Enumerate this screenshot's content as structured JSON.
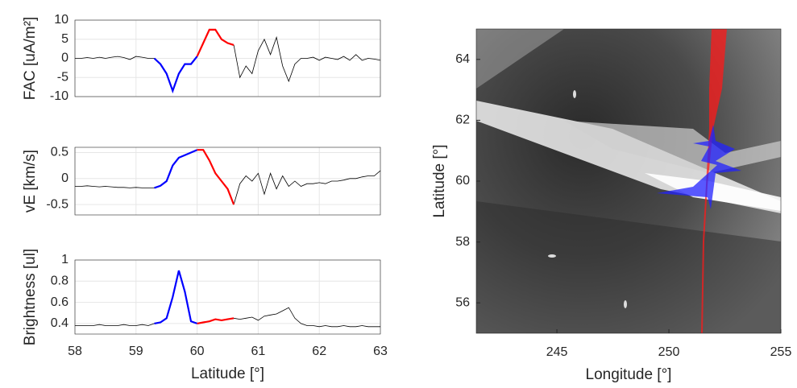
{
  "chart_data": [
    {
      "type": "line",
      "ylabel": "FAC [uA/m²]",
      "x": [
        58.0,
        58.1,
        58.2,
        58.3,
        58.4,
        58.5,
        58.6,
        58.7,
        58.8,
        58.9,
        59.0,
        59.1,
        59.2,
        59.3,
        59.4,
        59.5,
        59.6,
        59.7,
        59.8,
        59.9,
        60.0,
        60.1,
        60.2,
        60.3,
        60.4,
        60.5,
        60.6,
        60.7,
        60.8,
        60.9,
        61.0,
        61.1,
        61.2,
        61.3,
        61.4,
        61.5,
        61.6,
        61.7,
        61.8,
        61.9,
        62.0,
        62.1,
        62.2,
        62.3,
        62.4,
        62.5,
        62.6,
        62.7,
        62.8,
        62.9,
        63.0
      ],
      "series": [
        {
          "color": "#000000",
          "values": [
            0,
            0,
            0.2,
            0,
            0.3,
            0,
            0.3,
            0.5,
            0.2,
            -0.3,
            0.5,
            0.3,
            0,
            0,
            null,
            null,
            null,
            null,
            null,
            null,
            null,
            null,
            null,
            null,
            null,
            null,
            3.5,
            -5,
            -2,
            -4,
            2,
            5,
            1,
            5.5,
            -2,
            -6,
            -1.5,
            0,
            0,
            0.3,
            -0.5,
            0.3,
            0,
            -0.3,
            0.5,
            -0.5,
            1,
            -0.5,
            0,
            -0.2,
            -0.5
          ]
        },
        {
          "color": "#0000ff",
          "values": [
            null,
            null,
            null,
            null,
            null,
            null,
            null,
            null,
            null,
            null,
            null,
            null,
            null,
            0,
            -1.5,
            -4,
            -8.5,
            -4,
            -1.5,
            -1.5,
            0.5,
            null,
            null,
            null,
            null,
            null,
            null,
            null,
            null,
            null,
            null,
            null,
            null,
            null,
            null,
            null,
            null,
            null,
            null,
            null,
            null,
            null,
            null,
            null,
            null,
            null,
            null,
            null,
            null,
            null,
            null
          ]
        },
        {
          "color": "#ff0000",
          "values": [
            null,
            null,
            null,
            null,
            null,
            null,
            null,
            null,
            null,
            null,
            null,
            null,
            null,
            null,
            null,
            null,
            null,
            null,
            null,
            null,
            0.5,
            4,
            7.5,
            7.5,
            5,
            4,
            3.5,
            null,
            null,
            null,
            null,
            null,
            null,
            null,
            null,
            null,
            null,
            null,
            null,
            null,
            null,
            null,
            null,
            null,
            null,
            null,
            null,
            null,
            null,
            null,
            null
          ]
        }
      ],
      "xlim": [
        58,
        63
      ],
      "xticks": [
        58,
        59,
        60,
        61,
        62,
        63
      ],
      "ylim": [
        -10,
        10
      ],
      "yticks": [
        -10,
        -5,
        0,
        5,
        10
      ],
      "grid": true
    },
    {
      "type": "line",
      "ylabel": "vE [km/s]",
      "x": [
        58.0,
        58.1,
        58.2,
        58.3,
        58.4,
        58.5,
        58.6,
        58.7,
        58.8,
        58.9,
        59.0,
        59.1,
        59.2,
        59.3,
        59.4,
        59.5,
        59.6,
        59.7,
        59.8,
        59.9,
        60.0,
        60.1,
        60.2,
        60.3,
        60.4,
        60.5,
        60.6,
        60.7,
        60.8,
        60.9,
        61.0,
        61.1,
        61.2,
        61.3,
        61.4,
        61.5,
        61.6,
        61.7,
        61.8,
        61.9,
        62.0,
        62.1,
        62.2,
        62.3,
        62.4,
        62.5,
        62.6,
        62.7,
        62.8,
        62.9,
        63.0
      ],
      "series": [
        {
          "color": "#000000",
          "values": [
            -0.15,
            -0.15,
            -0.14,
            -0.15,
            -0.16,
            -0.15,
            -0.16,
            -0.17,
            -0.17,
            -0.18,
            -0.17,
            -0.18,
            -0.18,
            -0.18,
            null,
            null,
            null,
            null,
            null,
            null,
            null,
            null,
            null,
            null,
            null,
            null,
            -0.5,
            -0.1,
            0.05,
            -0.05,
            0.1,
            -0.3,
            0.1,
            -0.2,
            0.05,
            -0.15,
            -0.05,
            -0.15,
            -0.1,
            -0.1,
            -0.08,
            -0.1,
            -0.05,
            -0.05,
            -0.03,
            0,
            0,
            0.03,
            0.05,
            0.05,
            0.15
          ]
        },
        {
          "color": "#0000ff",
          "values": [
            null,
            null,
            null,
            null,
            null,
            null,
            null,
            null,
            null,
            null,
            null,
            null,
            null,
            -0.18,
            -0.14,
            -0.05,
            0.25,
            0.4,
            0.45,
            0.5,
            0.55,
            null,
            null,
            null,
            null,
            null,
            null,
            null,
            null,
            null,
            null,
            null,
            null,
            null,
            null,
            null,
            null,
            null,
            null,
            null,
            null,
            null,
            null,
            null,
            null,
            null,
            null,
            null,
            null,
            null,
            null
          ]
        },
        {
          "color": "#ff0000",
          "values": [
            null,
            null,
            null,
            null,
            null,
            null,
            null,
            null,
            null,
            null,
            null,
            null,
            null,
            null,
            null,
            null,
            null,
            null,
            null,
            null,
            0.55,
            0.55,
            0.35,
            0.1,
            -0.05,
            -0.2,
            -0.5,
            null,
            null,
            null,
            null,
            null,
            null,
            null,
            null,
            null,
            null,
            null,
            null,
            null,
            null,
            null,
            null,
            null,
            null,
            null,
            null,
            null,
            null,
            null,
            null
          ]
        }
      ],
      "xlim": [
        58,
        63
      ],
      "xticks": [
        58,
        59,
        60,
        61,
        62,
        63
      ],
      "ylim": [
        -0.7,
        0.6
      ],
      "yticks": [
        -0.5,
        0,
        0.5
      ],
      "grid": true
    },
    {
      "type": "line",
      "ylabel": "Brightness [ul]",
      "xlabel": "Latitude [°]",
      "x": [
        58.0,
        58.1,
        58.2,
        58.3,
        58.4,
        58.5,
        58.6,
        58.7,
        58.8,
        58.9,
        59.0,
        59.1,
        59.2,
        59.3,
        59.4,
        59.5,
        59.6,
        59.7,
        59.8,
        59.9,
        60.0,
        60.1,
        60.2,
        60.3,
        60.4,
        60.5,
        60.6,
        60.7,
        60.8,
        60.9,
        61.0,
        61.1,
        61.2,
        61.3,
        61.4,
        61.5,
        61.6,
        61.7,
        61.8,
        61.9,
        62.0,
        62.1,
        62.2,
        62.3,
        62.4,
        62.5,
        62.6,
        62.7,
        62.8,
        62.9,
        63.0
      ],
      "series": [
        {
          "color": "#000000",
          "values": [
            0.38,
            0.38,
            0.38,
            0.38,
            0.39,
            0.38,
            0.38,
            0.38,
            0.39,
            0.38,
            0.38,
            0.39,
            0.38,
            0.4,
            null,
            null,
            null,
            null,
            null,
            null,
            null,
            null,
            null,
            null,
            null,
            null,
            0.45,
            0.44,
            0.45,
            0.46,
            0.43,
            0.47,
            0.48,
            0.49,
            0.52,
            0.55,
            0.45,
            0.4,
            0.38,
            0.38,
            0.37,
            0.38,
            0.37,
            0.37,
            0.38,
            0.37,
            0.37,
            0.38,
            0.37,
            0.37,
            0.37
          ]
        },
        {
          "color": "#0000ff",
          "values": [
            null,
            null,
            null,
            null,
            null,
            null,
            null,
            null,
            null,
            null,
            null,
            null,
            null,
            0.4,
            0.41,
            0.45,
            0.65,
            0.9,
            0.7,
            0.42,
            0.4,
            null,
            null,
            null,
            null,
            null,
            null,
            null,
            null,
            null,
            null,
            null,
            null,
            null,
            null,
            null,
            null,
            null,
            null,
            null,
            null,
            null,
            null,
            null,
            null,
            null,
            null,
            null,
            null,
            null,
            null
          ]
        },
        {
          "color": "#ff0000",
          "values": [
            null,
            null,
            null,
            null,
            null,
            null,
            null,
            null,
            null,
            null,
            null,
            null,
            null,
            null,
            null,
            null,
            null,
            null,
            null,
            null,
            0.4,
            0.41,
            0.42,
            0.44,
            0.43,
            0.44,
            0.45,
            null,
            null,
            null,
            null,
            null,
            null,
            null,
            null,
            null,
            null,
            null,
            null,
            null,
            null,
            null,
            null,
            null,
            null,
            null,
            null,
            null,
            null,
            null,
            null
          ]
        }
      ],
      "xlim": [
        58,
        63
      ],
      "xticks": [
        58,
        59,
        60,
        61,
        62,
        63
      ],
      "ylim": [
        0.3,
        1
      ],
      "yticks": [
        0.4,
        0.6,
        0.8,
        1
      ],
      "grid": true
    },
    {
      "type": "image",
      "xlabel": "Longitude [°]",
      "ylabel": "Latitude [°]",
      "xlim": [
        241.4,
        255
      ],
      "xticks": [
        245,
        250,
        255
      ],
      "ylim": [
        55,
        65
      ],
      "yticks": [
        56,
        58,
        60,
        62,
        64
      ]
    }
  ]
}
